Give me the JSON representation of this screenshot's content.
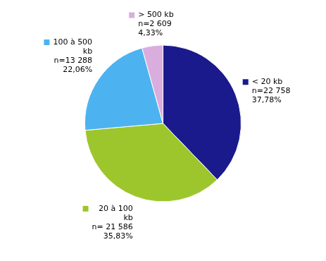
{
  "chart_data": {
    "type": "pie",
    "categories": [
      "< 20 kb",
      "20 à 100\nkb",
      "100 à 500\nkb",
      "> 500 kb"
    ],
    "values": [
      37.78,
      35.83,
      22.06,
      4.33
    ],
    "value_labels": [
      "37,78%",
      "35,83%",
      "22,06%",
      "4,33%"
    ],
    "count_labels": [
      "n=22 758",
      "n= 21 586",
      "n=13 288",
      "n=2 609"
    ],
    "colors": [
      "#1a1a8c",
      "#9dc62d",
      "#4db3f0",
      "#d9aede"
    ],
    "data_labels": true
  }
}
